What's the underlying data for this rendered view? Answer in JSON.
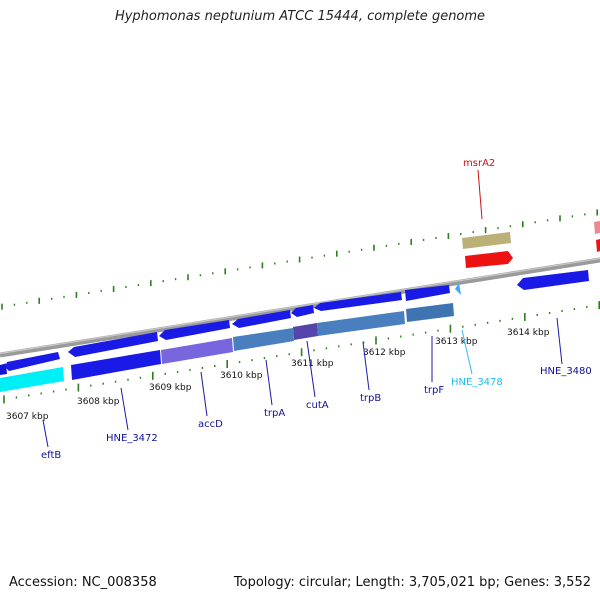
{
  "title": "Hyphomonas neptunium ATCC 15444, complete genome",
  "footer": {
    "accession": "Accession: NC_008358",
    "topology": "Topology: circular; Length: 3,705,021 bp; Genes: 3,552"
  },
  "colors": {
    "backbone": "#8a8a8a",
    "tick": "#2e7d1e",
    "forward_gene": "#1a1ae6",
    "reverse_gene": "#1a1ae6",
    "eftB": "#00e6f0",
    "accD_region": "#7766dd",
    "trp_operon_region": "#4a7fbf",
    "msrA2": "#ee1111",
    "msrA2_partner": "#bbb077",
    "pink_feature": "#ee8890",
    "dark_blue_label": "#111199",
    "light_blue_label": "#22bbee",
    "red_label": "#cc1111"
  },
  "kbp_ticks": [
    "3607 kbp",
    "3608 kbp",
    "3609 kbp",
    "3610 kbp",
    "3611 kbp",
    "3612 kbp",
    "3613 kbp",
    "3614 kbp"
  ],
  "gene_labels": [
    {
      "name": "eftB",
      "color": "dark_blue_label"
    },
    {
      "name": "HNE_3472",
      "color": "dark_blue_label"
    },
    {
      "name": "accD",
      "color": "dark_blue_label"
    },
    {
      "name": "trpA",
      "color": "dark_blue_label"
    },
    {
      "name": "cutA",
      "color": "dark_blue_label"
    },
    {
      "name": "trpB",
      "color": "dark_blue_label"
    },
    {
      "name": "trpF",
      "color": "dark_blue_label"
    },
    {
      "name": "HNE_3478",
      "color": "light_blue_label"
    },
    {
      "name": "HNE_3480",
      "color": "dark_blue_label"
    },
    {
      "name": "msrA2",
      "color": "red_label"
    }
  ]
}
